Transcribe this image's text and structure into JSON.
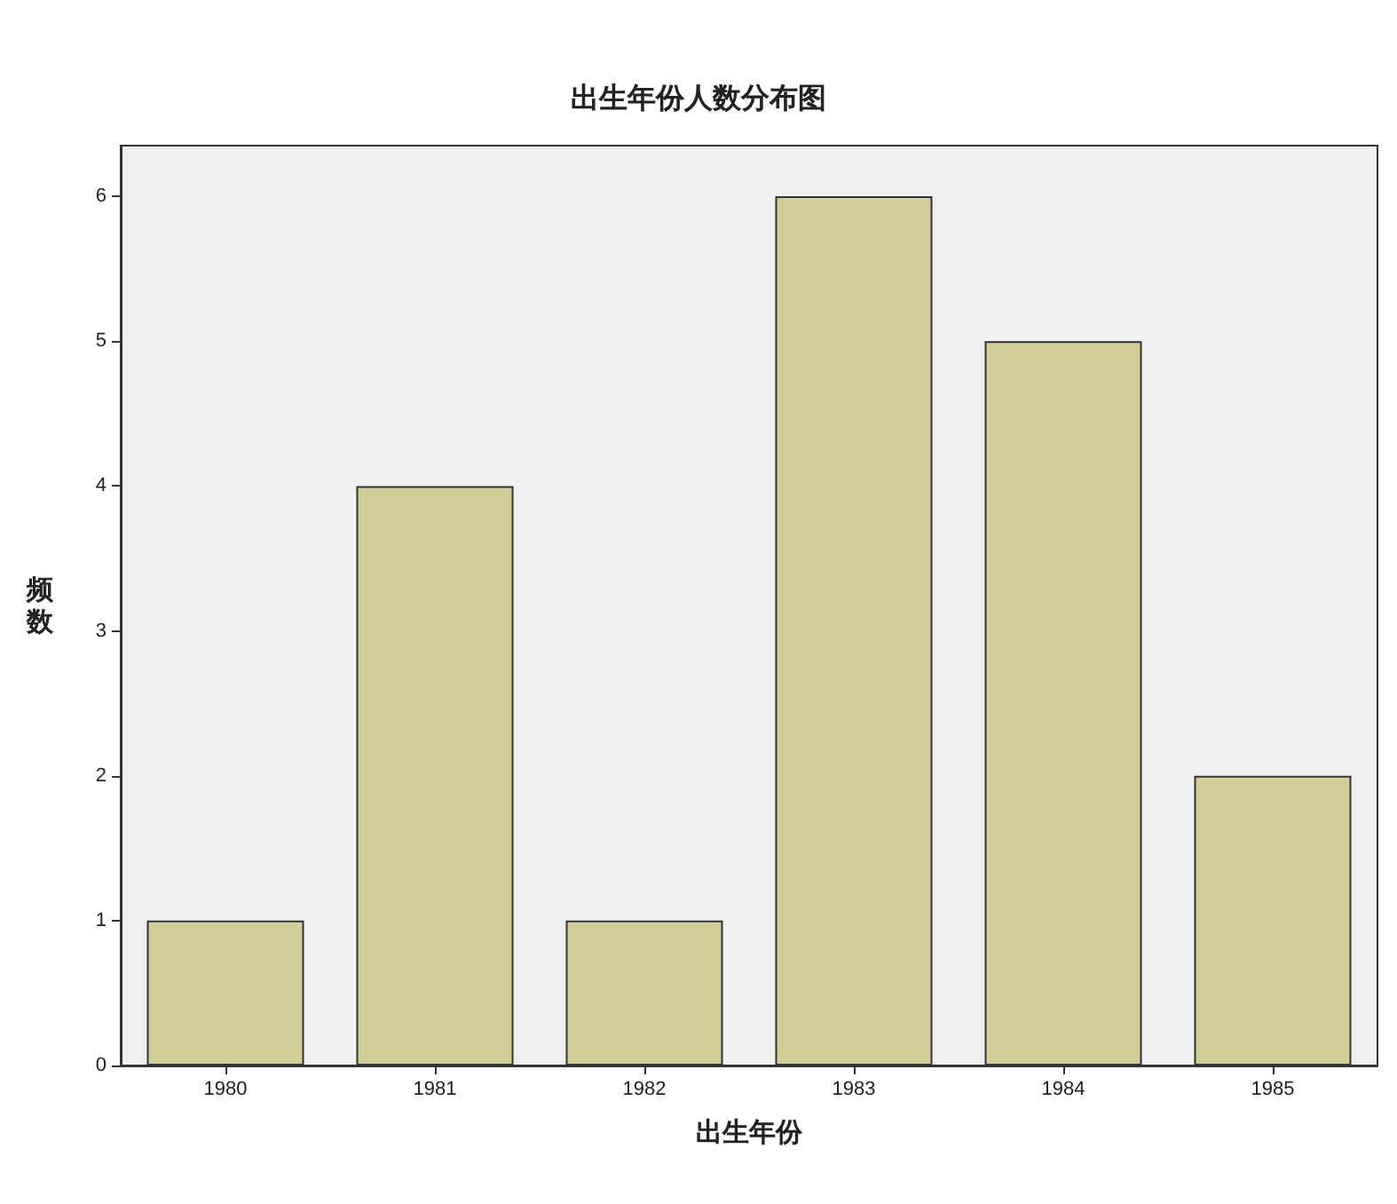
{
  "chart_data": {
    "type": "bar",
    "title": "出生年份人数分布图",
    "xlabel": "出生年份",
    "ylabel": "频数",
    "categories": [
      "1980",
      "1981",
      "1982",
      "1983",
      "1984",
      "1985"
    ],
    "values": [
      1,
      4,
      1,
      6,
      5,
      2
    ],
    "color": "#d3cd98",
    "ylim": [
      0,
      6.35
    ],
    "yticks": [
      0,
      1,
      2,
      3,
      4,
      5,
      6
    ]
  }
}
